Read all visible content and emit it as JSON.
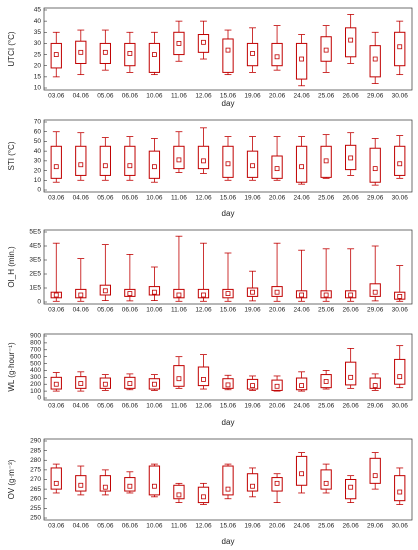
{
  "chart_data": [
    {
      "type": "box",
      "y_label": "UTCI (°C)",
      "x_label": "day",
      "color": "#c00000",
      "categories": [
        "03.06",
        "04.06",
        "05.06",
        "06.06",
        "10.06",
        "11.06",
        "12.06",
        "15.06",
        "19.06",
        "20.06",
        "24.06",
        "25.06",
        "26.06",
        "29.06",
        "30.06"
      ],
      "min": [
        15,
        16,
        18,
        17,
        16,
        22,
        23,
        16,
        17,
        18,
        11,
        17,
        21,
        12,
        16
      ],
      "q1": [
        19,
        21,
        21,
        20,
        17,
        25,
        26,
        17,
        20,
        20,
        14,
        22,
        24,
        15,
        20
      ],
      "median": [
        25,
        26,
        26,
        25.5,
        25,
        30,
        30.5,
        27,
        25.5,
        24,
        23,
        27,
        31.5,
        23,
        28.5
      ],
      "q3": [
        30,
        31,
        30,
        30,
        30,
        35,
        34,
        32,
        30,
        30,
        30,
        33,
        37,
        29,
        35
      ],
      "max": [
        35,
        36,
        36,
        35,
        35,
        40,
        40,
        36,
        37,
        38,
        34,
        38,
        43,
        35,
        40
      ],
      "ylim": [
        10,
        45
      ],
      "yticks": [
        10,
        15,
        20,
        25,
        30,
        35,
        40,
        45
      ]
    },
    {
      "type": "box",
      "y_label": "STI (°C)",
      "x_label": "day",
      "color": "#c00000",
      "categories": [
        "03.06",
        "04.06",
        "05.06",
        "06.06",
        "10.06",
        "11.06",
        "12.06",
        "15.06",
        "19.06",
        "20.06",
        "24.06",
        "25.06",
        "26.06",
        "29.06",
        "30.06"
      ],
      "min": [
        8,
        10,
        10,
        10,
        8,
        18,
        17,
        10,
        10,
        10,
        6,
        12,
        15,
        5,
        12
      ],
      "q1": [
        12,
        15,
        15,
        15,
        12,
        22,
        22,
        13,
        13,
        12,
        8,
        13,
        21,
        8,
        15
      ],
      "median": [
        24,
        26,
        25,
        25,
        24,
        31,
        30,
        27,
        25,
        22,
        24,
        30,
        33,
        22,
        27
      ],
      "q3": [
        45,
        45,
        45,
        45,
        40,
        45,
        45,
        45,
        40,
        35,
        45,
        45,
        46,
        43,
        45
      ],
      "max": [
        60,
        59,
        54,
        55,
        53,
        60,
        64,
        55,
        55,
        55,
        55,
        57,
        59,
        53,
        56
      ],
      "ylim": [
        0,
        70
      ],
      "yticks": [
        0,
        10,
        20,
        30,
        40,
        50,
        60,
        70
      ]
    },
    {
      "type": "box",
      "y_label": "OI_H (min.)",
      "color": "#c00000",
      "categories": [
        "03.06",
        "04.06",
        "05.06",
        "06.06",
        "10.06",
        "11.06",
        "12.06",
        "15.06",
        "19.06",
        "20.06",
        "24.06",
        "25.06",
        "26.06",
        "29.06",
        "30.06"
      ],
      "min": [
        5000,
        5000,
        10000,
        8000,
        10000,
        5000,
        5000,
        5000,
        8000,
        5000,
        5000,
        5000,
        5000,
        8000,
        5000
      ],
      "q1": [
        30000,
        30000,
        50000,
        40000,
        50000,
        30000,
        30000,
        30000,
        40000,
        40000,
        30000,
        30000,
        30000,
        40000,
        20000
      ],
      "median": [
        50000,
        50000,
        80000,
        60000,
        70000,
        50000,
        50000,
        60000,
        70000,
        70000,
        50000,
        50000,
        50000,
        70000,
        40000
      ],
      "q3": [
        70000,
        90000,
        120000,
        90000,
        110000,
        90000,
        90000,
        90000,
        100000,
        110000,
        80000,
        80000,
        80000,
        130000,
        70000
      ],
      "max": [
        420000,
        310000,
        410000,
        340000,
        250000,
        470000,
        420000,
        350000,
        220000,
        420000,
        370000,
        380000,
        380000,
        400000,
        260000
      ],
      "ylim": [
        0,
        500000
      ],
      "yticks": [
        0,
        {
          "value": 100000,
          "label": "1E5"
        },
        {
          "value": 200000,
          "label": "2E5"
        },
        {
          "value": 300000,
          "label": "3E5"
        },
        {
          "value": 400000,
          "label": "4E5"
        },
        {
          "value": 500000,
          "label": "5E5"
        }
      ]
    },
    {
      "type": "box",
      "y_label": "WL (g·hour⁻¹)",
      "x_label": "day",
      "color": "#c00000",
      "categories": [
        "03.06",
        "04.06",
        "05.06",
        "06.06",
        "10.06",
        "11.06",
        "12.06",
        "15.06",
        "19.06",
        "20.06",
        "24.06",
        "25.06",
        "26.06",
        "29.06",
        "30.06"
      ],
      "min": [
        100,
        100,
        110,
        120,
        110,
        140,
        130,
        120,
        110,
        100,
        100,
        130,
        140,
        110,
        150
      ],
      "q1": [
        130,
        140,
        140,
        140,
        130,
        170,
        180,
        140,
        130,
        110,
        120,
        150,
        190,
        140,
        200
      ],
      "median": [
        200,
        210,
        200,
        210,
        200,
        280,
        270,
        190,
        180,
        170,
        180,
        240,
        300,
        180,
        310
      ],
      "q3": [
        300,
        310,
        290,
        300,
        280,
        470,
        450,
        280,
        270,
        260,
        290,
        340,
        520,
        290,
        560
      ],
      "max": [
        370,
        380,
        340,
        350,
        340,
        600,
        630,
        330,
        320,
        320,
        380,
        400,
        720,
        350,
        760
      ],
      "ylim": [
        0,
        900
      ],
      "yticks": [
        0,
        100,
        200,
        300,
        400,
        500,
        600,
        700,
        800,
        900
      ]
    },
    {
      "type": "box",
      "y_label": "OV (g·m⁻³)",
      "x_label": "day",
      "color": "#c00000",
      "categories": [
        "03.06",
        "04.06",
        "05.06",
        "06.06",
        "10.06",
        "11.06",
        "12.06",
        "15.06",
        "19.06",
        "20.06",
        "24.06",
        "25.06",
        "26.06",
        "29.06",
        "30.06"
      ],
      "min": [
        263,
        262,
        262,
        263,
        261,
        258,
        257,
        260,
        261,
        258,
        263,
        263,
        258,
        265,
        257
      ],
      "q1": [
        265,
        264,
        264,
        264,
        262,
        260,
        258,
        262,
        264,
        264,
        267,
        265,
        260,
        268,
        259
      ],
      "median": [
        268,
        267,
        266,
        266.5,
        266.5,
        262,
        261,
        265,
        266.5,
        268,
        273,
        268,
        266,
        272,
        263.5
      ],
      "q3": [
        276,
        272,
        272,
        271,
        277,
        267,
        266,
        277,
        273,
        271,
        282,
        275,
        270,
        281,
        272
      ],
      "max": [
        278,
        277,
        275,
        274,
        278,
        268,
        268,
        278,
        276,
        273,
        284,
        278,
        272,
        284,
        276
      ],
      "ylim": [
        250,
        290
      ],
      "yticks": [
        250,
        255,
        260,
        265,
        270,
        275,
        280,
        285,
        290
      ]
    }
  ]
}
